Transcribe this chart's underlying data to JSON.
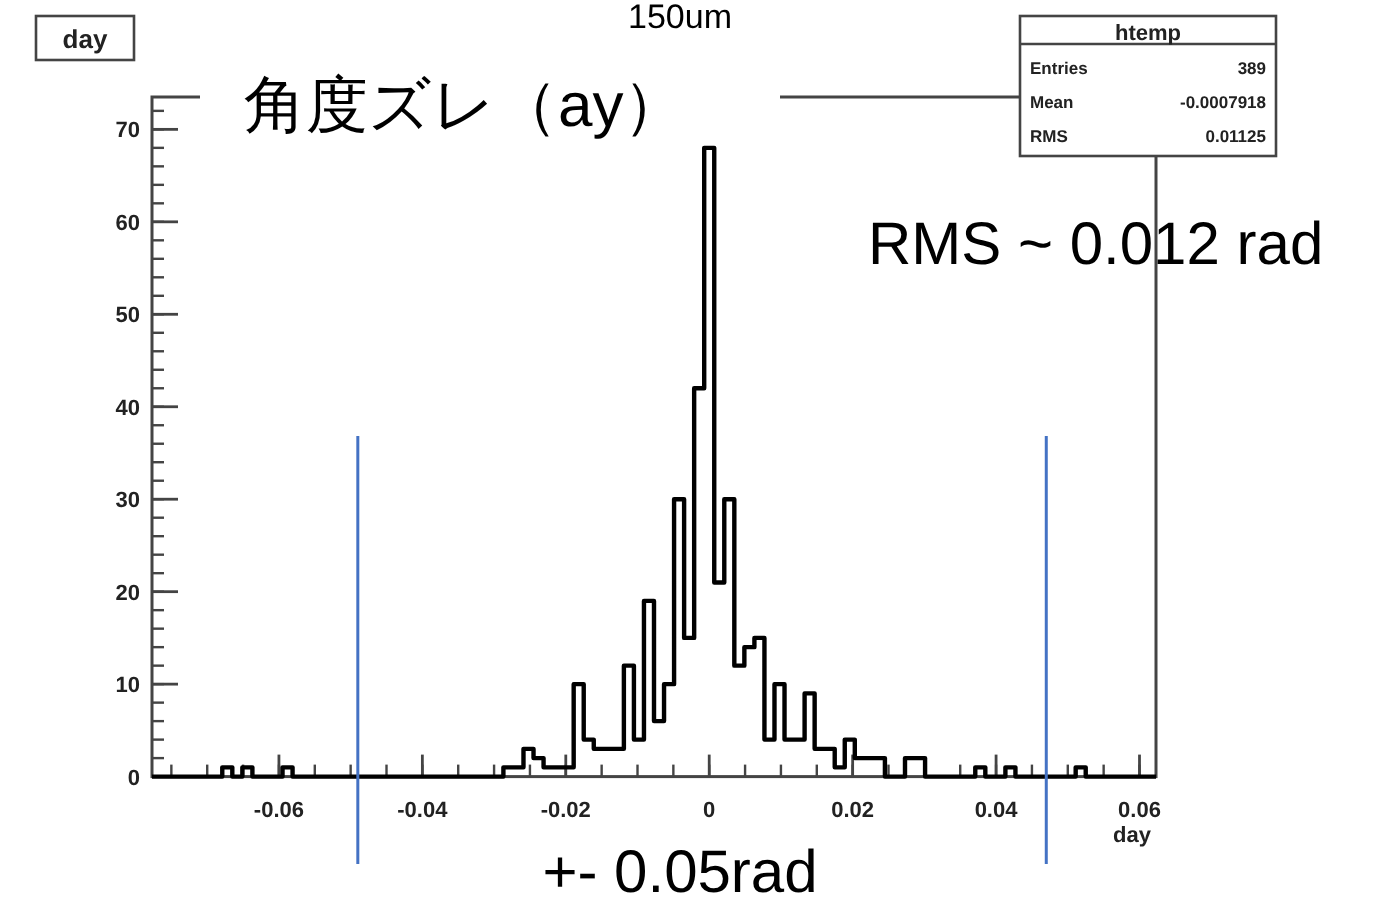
{
  "chart_data": {
    "type": "histogram",
    "title": "day",
    "subtitle": "角度ズレ（ay）",
    "xlabel": "day",
    "bins": [
      -0.0777,
      -0.0763,
      -0.0749,
      -0.0735,
      -0.0721,
      -0.0707,
      -0.0693,
      -0.0679,
      -0.0665,
      -0.0651,
      -0.0637,
      -0.0623,
      -0.0609,
      -0.0595,
      -0.0581,
      -0.0567,
      -0.0553,
      -0.0539,
      -0.0525,
      -0.0511,
      -0.0497,
      -0.0483,
      -0.0469,
      -0.0455,
      -0.0441,
      -0.0427,
      -0.0413,
      -0.0399,
      -0.0385,
      -0.0371,
      -0.0357,
      -0.0343,
      -0.0329,
      -0.0315,
      -0.0301,
      -0.0287,
      -0.0273,
      -0.0259,
      -0.0245,
      -0.0231,
      -0.0217,
      -0.0203,
      -0.0189,
      -0.0175,
      -0.0161,
      -0.0147,
      -0.0133,
      -0.0119,
      -0.0105,
      -0.0091,
      -0.0077,
      -0.0063,
      -0.0049,
      -0.0035,
      -0.0021,
      -0.0007,
      0.0007,
      0.0021,
      0.0035,
      0.0049,
      0.0063,
      0.0077,
      0.0091,
      0.0105,
      0.0119,
      0.0133,
      0.0147,
      0.0161,
      0.0175,
      0.0189,
      0.0203,
      0.0217,
      0.0231,
      0.0245,
      0.0259,
      0.0273,
      0.0287,
      0.0301,
      0.0315,
      0.0329,
      0.0343,
      0.0357,
      0.0371,
      0.0385,
      0.0399,
      0.0413,
      0.0427,
      0.0441,
      0.0455,
      0.0469,
      0.0483,
      0.0497,
      0.0511,
      0.0525,
      0.0539,
      0.0553,
      0.0567,
      0.0581,
      0.0595,
      0.0609,
      0.0623
    ],
    "values": [
      0,
      0,
      0,
      0,
      0,
      0,
      0,
      1,
      0,
      1,
      0,
      0,
      0,
      1,
      0,
      0,
      0,
      0,
      0,
      0,
      0,
      0,
      0,
      0,
      0,
      0,
      0,
      0,
      0,
      0,
      0,
      0,
      0,
      0,
      0,
      1,
      1,
      3,
      2,
      1,
      1,
      1,
      10,
      4,
      3,
      3,
      3,
      12,
      4,
      19,
      6,
      10,
      30,
      15,
      42,
      68,
      21,
      30,
      12,
      14,
      15,
      4,
      10,
      4,
      4,
      9,
      3,
      3,
      1,
      4,
      2,
      2,
      2,
      0,
      0,
      2,
      2,
      0,
      0,
      0,
      0,
      0,
      1,
      0,
      0,
      1,
      0,
      0,
      0,
      0,
      0,
      0,
      1,
      0,
      0,
      0,
      0,
      0,
      0,
      0
    ],
    "color": "#000000",
    "xlim": [
      -0.0777,
      0.0623
    ],
    "xticks": [
      -0.06,
      -0.04,
      -0.02,
      0,
      0.02,
      0.04,
      0.06
    ],
    "ylim": [
      0,
      73.5
    ],
    "yticks": [
      0,
      10,
      20,
      30,
      40,
      50,
      60,
      70
    ],
    "ref_lines": [
      {
        "axis": "x",
        "value": -0.049,
        "color": "#4472c4"
      },
      {
        "axis": "x",
        "value": 0.047,
        "color": "#4472c4"
      }
    ],
    "annotations": [
      "150um",
      "RMS ~ 0.012 rad",
      "+- 0.05rad",
      "htemp",
      "Entries",
      "389",
      "Mean",
      "-0.0007918",
      "RMS",
      "0.01125"
    ]
  }
}
